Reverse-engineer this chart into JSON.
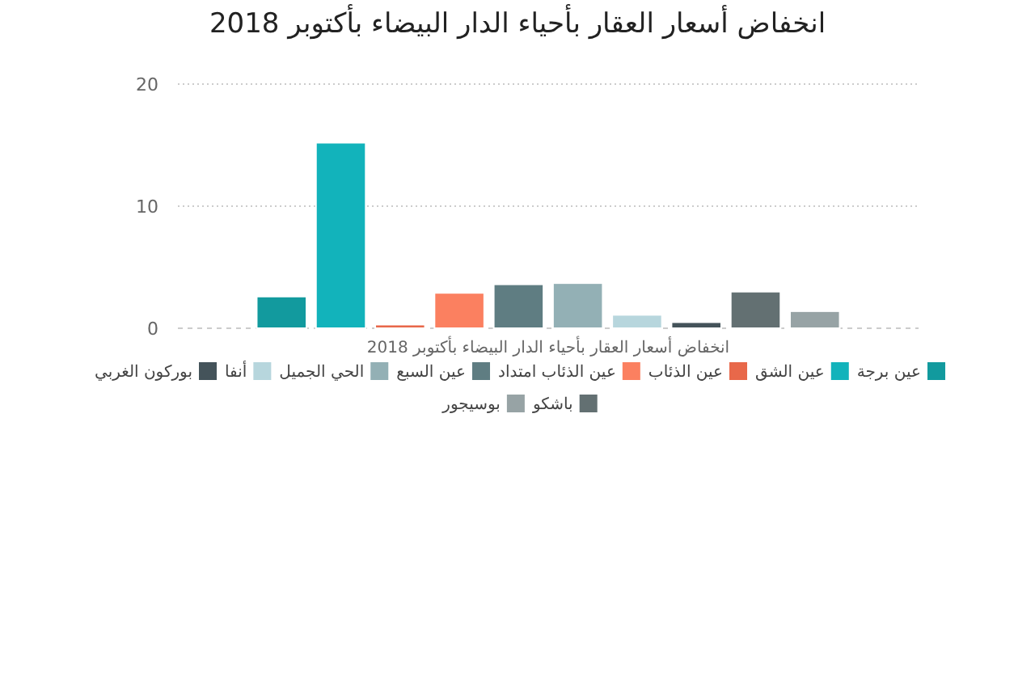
{
  "chart_data": {
    "type": "bar",
    "title": "انخفاض أسعار العقار بأحياء الدار البيضاء بأكتوبر 2018",
    "categories": [
      "انخفاض أسعار العقار بأحياء الدار البيضاء بأكتوبر 2018"
    ],
    "series": [
      {
        "name": "عين برجة",
        "color": "#129a9e",
        "values": [
          2.6
        ]
      },
      {
        "name": "عين الشق",
        "color": "#12b3bb",
        "values": [
          15.2
        ]
      },
      {
        "name": "عين الذئاب",
        "color": "#e8684a",
        "values": [
          0.3
        ]
      },
      {
        "name": "عين الذئاب امتداد",
        "color": "#fb8060",
        "values": [
          2.9
        ]
      },
      {
        "name": "عين السبع",
        "color": "#5f7d82",
        "values": [
          3.6
        ]
      },
      {
        "name": "الحي الجميل",
        "color": "#93b0b5",
        "values": [
          3.7
        ]
      },
      {
        "name": "أنفا",
        "color": "#b7d6dd",
        "values": [
          1.1
        ]
      },
      {
        "name": "بوركون الغربي",
        "color": "#44535a",
        "values": [
          0.5
        ]
      },
      {
        "name": "باشكو",
        "color": "#637072",
        "values": [
          3.0
        ]
      },
      {
        "name": "بوسيجور",
        "color": "#97a3a5",
        "values": [
          1.4
        ]
      }
    ],
    "ylim": [
      0,
      20
    ],
    "yticks": [
      0,
      10,
      20
    ],
    "grid": "y",
    "legend": "bottom"
  }
}
